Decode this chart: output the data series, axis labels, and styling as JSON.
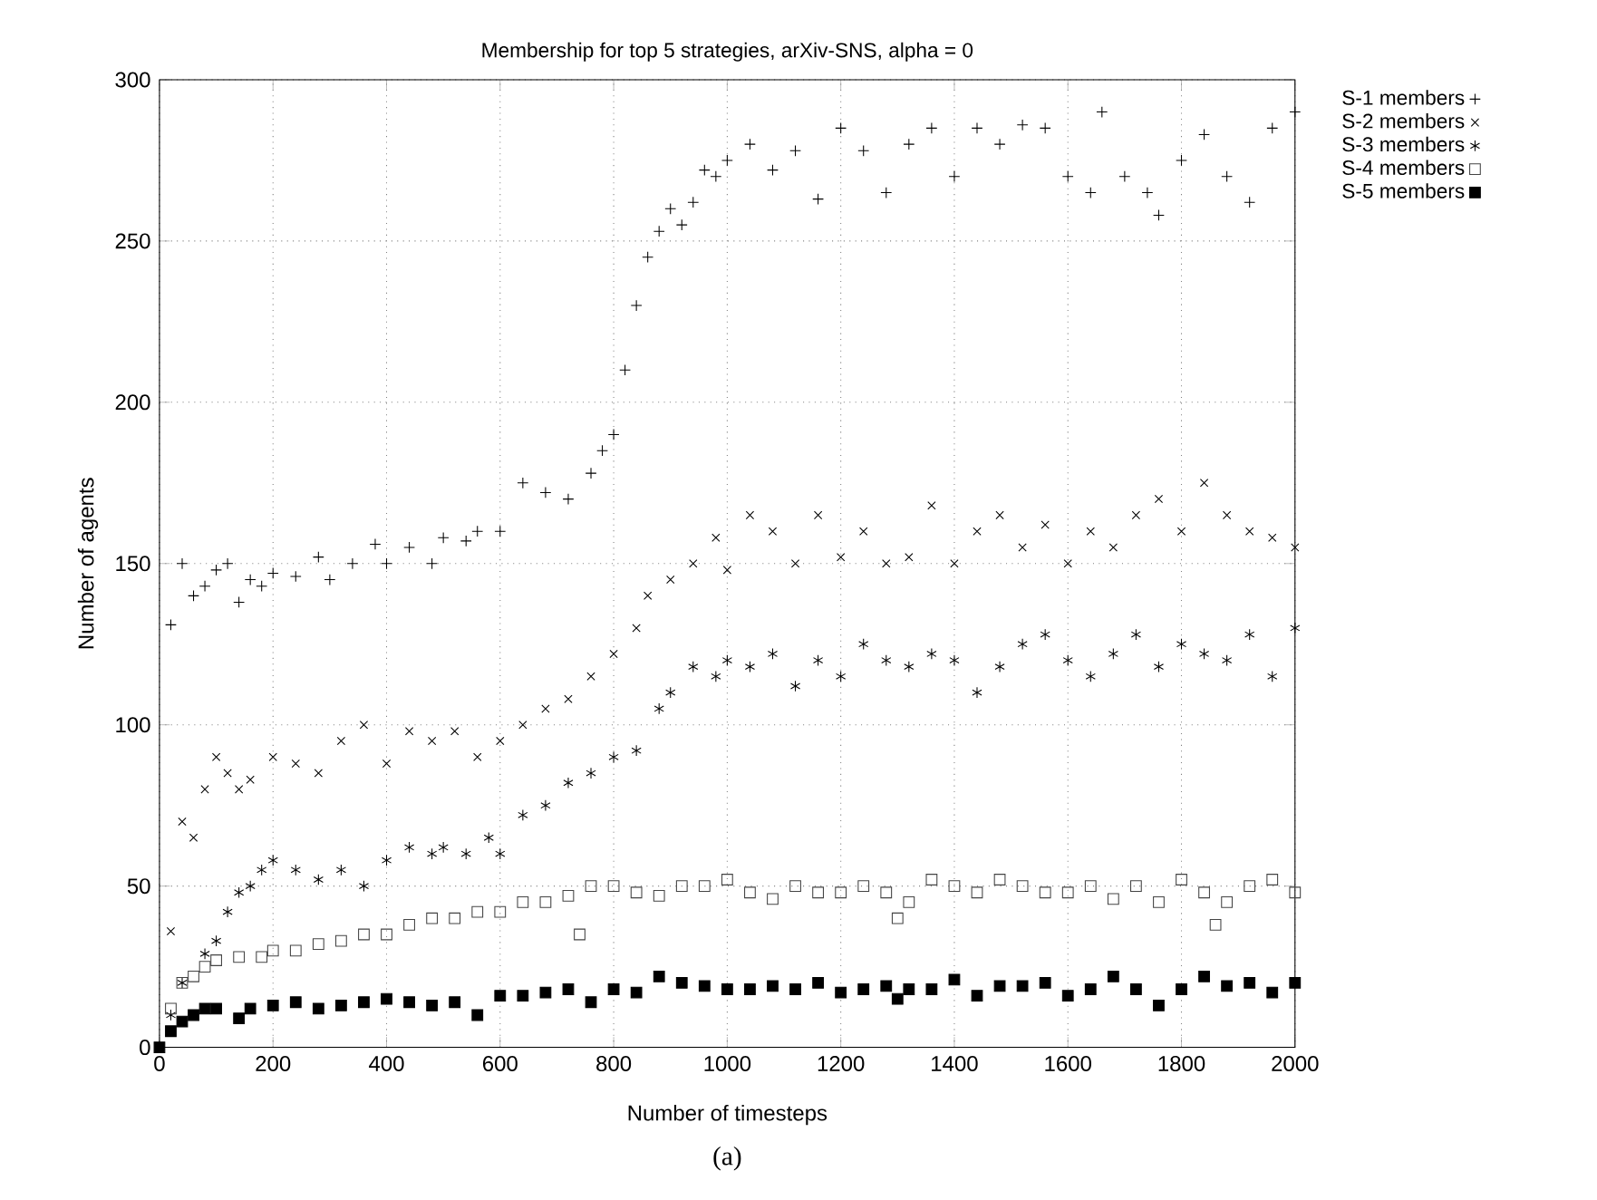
{
  "chart_data": {
    "type": "scatter",
    "title": "Membership for top 5 strategies, arXiv-SNS, alpha = 0",
    "xlabel": "Number of timesteps",
    "ylabel": "Number of agents",
    "annotations": [
      "(a)"
    ],
    "xlim": [
      0,
      2000
    ],
    "ylim": [
      0,
      300
    ],
    "xticks": [
      0,
      200,
      400,
      600,
      800,
      1000,
      1200,
      1400,
      1600,
      1800,
      2000
    ],
    "yticks": [
      0,
      50,
      100,
      150,
      200,
      250,
      300
    ],
    "grid": true,
    "legend": "top right",
    "series": [
      {
        "name": "S-1 members",
        "color": "#000000",
        "marker": "plus",
        "x": [
          20,
          40,
          60,
          80,
          100,
          120,
          140,
          160,
          180,
          200,
          240,
          280,
          300,
          340,
          380,
          400,
          440,
          480,
          500,
          540,
          560,
          600,
          640,
          680,
          720,
          760,
          780,
          800,
          820,
          840,
          860,
          880,
          900,
          920,
          940,
          960,
          980,
          1000,
          1040,
          1080,
          1120,
          1160,
          1200,
          1240,
          1280,
          1320,
          1360,
          1400,
          1440,
          1480,
          1520,
          1560,
          1600,
          1640,
          1660,
          1700,
          1740,
          1760,
          1800,
          1840,
          1880,
          1920,
          1960,
          2000
        ],
        "values": [
          131,
          150,
          140,
          143,
          148,
          150,
          138,
          145,
          143,
          147,
          146,
          152,
          145,
          150,
          156,
          150,
          155,
          150,
          158,
          157,
          160,
          160,
          175,
          172,
          170,
          178,
          185,
          190,
          210,
          230,
          245,
          253,
          260,
          255,
          262,
          272,
          270,
          275,
          280,
          272,
          278,
          263,
          285,
          278,
          265,
          280,
          285,
          270,
          285,
          280,
          286,
          285,
          270,
          265,
          290,
          270,
          265,
          258,
          275,
          283,
          270,
          262,
          285,
          290
        ]
      },
      {
        "name": "S-2 members",
        "color": "#000000",
        "marker": "x",
        "x": [
          20,
          40,
          60,
          80,
          100,
          120,
          140,
          160,
          200,
          240,
          280,
          320,
          360,
          400,
          440,
          480,
          520,
          560,
          600,
          640,
          680,
          720,
          760,
          800,
          840,
          860,
          900,
          940,
          980,
          1000,
          1040,
          1080,
          1120,
          1160,
          1200,
          1240,
          1280,
          1320,
          1360,
          1400,
          1440,
          1480,
          1520,
          1560,
          1600,
          1640,
          1680,
          1720,
          1760,
          1800,
          1840,
          1880,
          1920,
          1960,
          2000
        ],
        "values": [
          36,
          70,
          65,
          80,
          90,
          85,
          80,
          83,
          90,
          88,
          85,
          95,
          100,
          88,
          98,
          95,
          98,
          90,
          95,
          100,
          105,
          108,
          115,
          122,
          130,
          140,
          145,
          150,
          158,
          148,
          165,
          160,
          150,
          165,
          152,
          160,
          150,
          152,
          168,
          150,
          160,
          165,
          155,
          162,
          150,
          160,
          155,
          165,
          170,
          160,
          175,
          165,
          160,
          158,
          155
        ]
      },
      {
        "name": "S-3 members",
        "color": "#000000",
        "marker": "cross",
        "x": [
          20,
          40,
          80,
          100,
          120,
          140,
          160,
          180,
          200,
          240,
          280,
          320,
          360,
          400,
          440,
          480,
          500,
          540,
          580,
          600,
          640,
          680,
          720,
          760,
          800,
          840,
          880,
          900,
          940,
          980,
          1000,
          1040,
          1080,
          1120,
          1160,
          1200,
          1240,
          1280,
          1320,
          1360,
          1400,
          1440,
          1480,
          1520,
          1560,
          1600,
          1640,
          1680,
          1720,
          1760,
          1800,
          1840,
          1880,
          1920,
          1960,
          2000
        ],
        "values": [
          10,
          20,
          29,
          33,
          42,
          48,
          50,
          55,
          58,
          55,
          52,
          55,
          50,
          58,
          62,
          60,
          62,
          60,
          65,
          60,
          72,
          75,
          82,
          85,
          90,
          92,
          105,
          110,
          118,
          115,
          120,
          118,
          122,
          112,
          120,
          115,
          125,
          120,
          118,
          122,
          120,
          110,
          118,
          125,
          128,
          120,
          115,
          122,
          128,
          118,
          125,
          122,
          120,
          128,
          115,
          130
        ]
      },
      {
        "name": "S-4 members",
        "color": "#444444",
        "marker": "square",
        "x": [
          20,
          40,
          60,
          80,
          100,
          140,
          180,
          200,
          240,
          280,
          320,
          360,
          400,
          440,
          480,
          520,
          560,
          600,
          640,
          680,
          720,
          740,
          760,
          800,
          840,
          880,
          920,
          960,
          1000,
          1040,
          1080,
          1120,
          1160,
          1200,
          1240,
          1280,
          1300,
          1320,
          1360,
          1400,
          1440,
          1480,
          1520,
          1560,
          1600,
          1640,
          1680,
          1720,
          1760,
          1800,
          1840,
          1860,
          1880,
          1920,
          1960,
          2000
        ],
        "values": [
          12,
          20,
          22,
          25,
          27,
          28,
          28,
          30,
          30,
          32,
          33,
          35,
          35,
          38,
          40,
          40,
          42,
          42,
          45,
          45,
          47,
          35,
          50,
          50,
          48,
          47,
          50,
          50,
          52,
          48,
          46,
          50,
          48,
          48,
          50,
          48,
          40,
          45,
          52,
          50,
          48,
          52,
          50,
          48,
          48,
          50,
          46,
          50,
          45,
          52,
          48,
          38,
          45,
          50,
          52,
          48
        ]
      },
      {
        "name": "S-5 members",
        "color": "#000000",
        "x": [
          0,
          20,
          40,
          60,
          80,
          100,
          140,
          160,
          200,
          240,
          280,
          320,
          360,
          400,
          440,
          480,
          520,
          560,
          600,
          640,
          680,
          720,
          760,
          800,
          840,
          880,
          920,
          960,
          1000,
          1040,
          1080,
          1120,
          1160,
          1200,
          1240,
          1280,
          1300,
          1320,
          1360,
          1400,
          1440,
          1480,
          1520,
          1560,
          1600,
          1640,
          1680,
          1720,
          1760,
          1800,
          1840,
          1880,
          1920,
          1960,
          2000
        ],
        "values": [
          0,
          5,
          8,
          10,
          12,
          12,
          9,
          12,
          13,
          14,
          12,
          13,
          14,
          15,
          14,
          13,
          14,
          10,
          16,
          16,
          17,
          18,
          14,
          18,
          17,
          22,
          20,
          19,
          18,
          18,
          19,
          18,
          20,
          17,
          18,
          19,
          15,
          18,
          18,
          21,
          16,
          19,
          19,
          20,
          16,
          18,
          22,
          18,
          13,
          18,
          22,
          19,
          20,
          17,
          20
        ]
      }
    ]
  }
}
